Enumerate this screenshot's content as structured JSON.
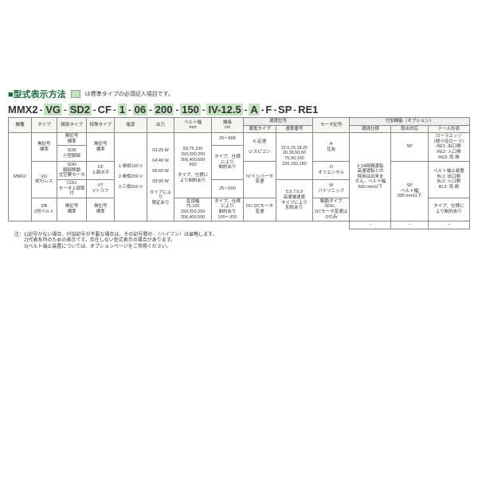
{
  "title": "■型式表示方法",
  "title_note": "は標準タイプの必須記入項目です。",
  "model_segments": [
    "MMX2",
    "VG",
    "SD2",
    "CF",
    "1",
    "06",
    "200",
    "150",
    "IV-12.5",
    "A",
    "F",
    "SP",
    "RE1"
  ],
  "std_flags": [
    false,
    true,
    true,
    false,
    true,
    true,
    true,
    true,
    true,
    true,
    false,
    false,
    false
  ],
  "dash": "-",
  "headers": {
    "c1": "機種",
    "c2": "タイプ",
    "c3": "脚部タイプ",
    "c4": "特殊タイプ",
    "c5": "電源",
    "c6": "出力",
    "c7": "ベルト幅\nmm",
    "c8": "機長\ncm",
    "c9g": "速度記号",
    "c9a": "速度タイプ",
    "c9b": "速度番号",
    "c10": "モータ記号",
    "c11g": "付加機能（オプション）",
    "c11a": "環境仕様",
    "c11b": "取出対応",
    "c11c": "テール形状"
  },
  "col1": {
    "a": "MMX2"
  },
  "col2": {
    "a": "無記号\n標準",
    "b": "VG\n蛇行レス",
    "c": "DB\n2列ベルト"
  },
  "col3": {
    "a": "無記号\n標準",
    "b": "SDB\n小型脚部",
    "c": "SDH\n脚部移動\n式空胴モータ",
    "d": "CDU\nモータ上部取付",
    "e": "無記号\n標準"
  },
  "col4": {
    "a": "無記号\n標準",
    "b": "CF\n上面水平",
    "c": "VT\nVトラフ",
    "d": "無記号\n標準"
  },
  "col5": {
    "a": "1:単相100 V",
    "b": "2:単相200 V",
    "c": "3:三相200 V"
  },
  "col6": {
    "a": "03:25 W",
    "b": "04:40 W",
    "c": "06:60 W",
    "d": "09:90 W",
    "e": "タイプにより\n限定あり"
  },
  "col7": {
    "a": "50,75,100\n150,200,250\n300,400,500\n600",
    "b": "タイプ、仕様に\nより制約あり",
    "c": "直頂幅\n75,100\n150,200,250\n300,400,500"
  },
  "col8": {
    "a": "25～800",
    "b": "タイプ、仕様\nにより\n制約あり",
    "c": "25～600",
    "d": "タイプ、仕様\nにより\n制約あり",
    "e": "100～200"
  },
  "col9a": {
    "a": "K:定速",
    "b": "U:スピコン",
    "c": "IV:インバータ\n変速",
    "d": "DC:DCモータ\n変速"
  },
  "col9b": {
    "a": "12.5,15,18,25\n30,36,50,60\n75,90,100\n120,150,180",
    "b": "5,5,7,5,9\n高速端速度\nタイプにより\n別約あり"
  },
  "col10": {
    "a": "A\n住友",
    "b": "O\nオリエンタル",
    "c": "M\nパナソニック",
    "d": "駆動タイプSDH、\nDCモータ変速は\nOのみ"
  },
  "col11a": {
    "a": "F:24時間運転\n高速運転との\n併用は出来ま\nせん。ベルト幅\n500 mm以下",
    "b": "−"
  },
  "col11b": {
    "a": "SP",
    "b": "SP\nベルト幅\n300 mm以下",
    "c": "−"
  },
  "col11c": {
    "a": "ローラエッジ\n（極小径ローラ）\nRE1: 出口側\nRE2: 入口側\nRE3: 両 側",
    "b": "ベルト端止装置\nBL1: 出口側\nBL2: 入口側\nBL3: 両 側",
    "c": "タイプ、仕様に\nより制約あり",
    "d": "−"
  },
  "notes": [
    "注：1)記号がない場合、付加記号が不要な場合は、その記号間の -（ハイフン）は省略します。",
    "　　2)代表系列のための表示です。存在しない型式表示の場合があります。",
    "　　3)ベルト端止装置については、オプションページをご参照ください。"
  ],
  "colors": {
    "accent": "#1a6b3f",
    "std_bg": "#c6e2c0"
  }
}
